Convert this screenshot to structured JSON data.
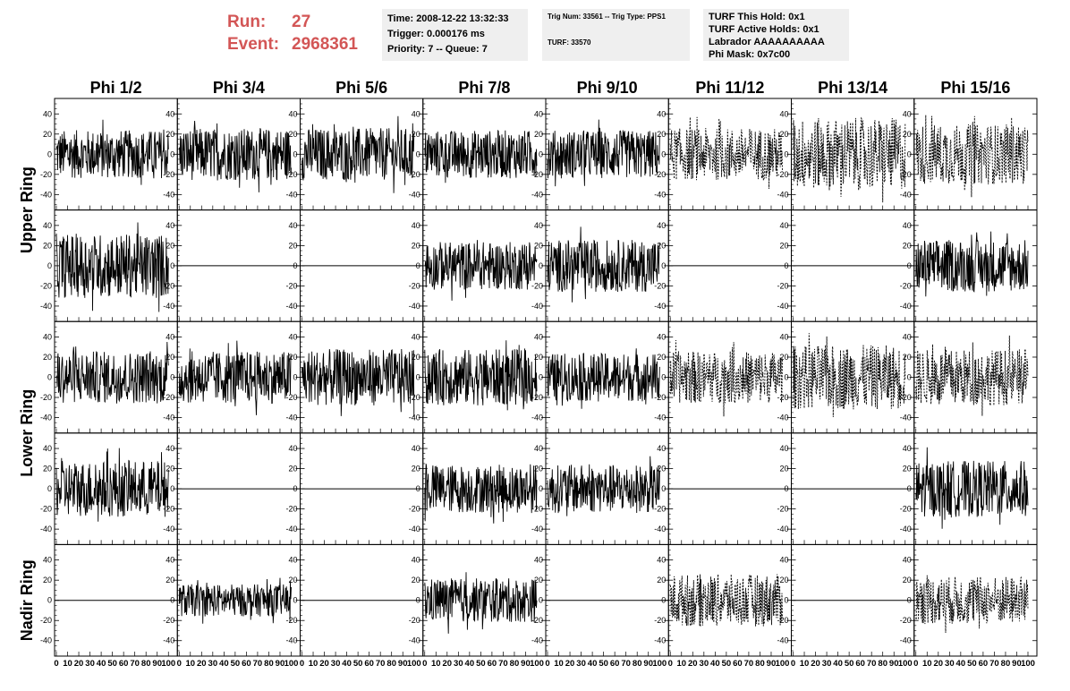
{
  "header": {
    "run_label": "Run:",
    "run_value": "27",
    "event_label": "Event:",
    "event_value": "2968361",
    "time": "Time: 2008-12-22 13:32:33",
    "trigger": "Trigger: 0.000176 ms",
    "priority": "Priority: 7 -- Queue: 7",
    "trig_num": "Trig Num: 33561 -- Trig Type: PPS1",
    "turf": "TURF: 33570",
    "turf_hold": "TURF This Hold: 0x1",
    "turf_active": "TURF Active Holds: 0x1",
    "labrador": "Labrador AAAAAAAAAA",
    "phi_mask": "Phi Mask: 0x7c00"
  },
  "chart_data": {
    "type": "line",
    "columns": [
      "Phi 1/2",
      "Phi 3/4",
      "Phi 5/6",
      "Phi 7/8",
      "Phi 9/10",
      "Phi 11/12",
      "Phi 13/14",
      "Phi 15/16"
    ],
    "ring_labels": [
      {
        "label": "Upper Ring",
        "rows": [
          0,
          1
        ]
      },
      {
        "label": "Lower Ring",
        "rows": [
          2,
          3
        ]
      },
      {
        "label": "Nadir Ring",
        "rows": [
          4
        ]
      }
    ],
    "ylim": [
      -50,
      50
    ],
    "yticks": [
      -40,
      -20,
      0,
      20,
      40
    ],
    "xlim": [
      0,
      100
    ],
    "xtick_labels": [
      "0",
      "10",
      "20",
      "30",
      "40",
      "50",
      "60",
      "70",
      "80",
      "90",
      "100"
    ],
    "panels": [
      [
        {
          "s": "solid",
          "a": 24
        },
        {
          "s": "solid",
          "a": 26
        },
        {
          "s": "solid",
          "a": 26
        },
        {
          "s": "solid",
          "a": 24
        },
        {
          "s": "solid",
          "a": 24
        },
        {
          "s": "dashed",
          "a": 26
        },
        {
          "s": "dashed",
          "a": 36
        },
        {
          "s": "dashed",
          "a": 30
        }
      ],
      [
        {
          "s": "solid",
          "a": 32
        },
        {
          "s": "flat",
          "a": 0
        },
        {
          "s": "flat",
          "a": 0
        },
        {
          "s": "solid",
          "a": 24
        },
        {
          "s": "solid",
          "a": 26
        },
        {
          "s": "flat",
          "a": 0
        },
        {
          "s": "flat",
          "a": 0
        },
        {
          "s": "solid",
          "a": 26
        }
      ],
      [
        {
          "s": "solid",
          "a": 26
        },
        {
          "s": "solid",
          "a": 26
        },
        {
          "s": "solid",
          "a": 28
        },
        {
          "s": "solid",
          "a": 28
        },
        {
          "s": "solid",
          "a": 24
        },
        {
          "s": "dashed",
          "a": 26
        },
        {
          "s": "dashed",
          "a": 32
        },
        {
          "s": "dashed",
          "a": 28
        }
      ],
      [
        {
          "s": "solid",
          "a": 28
        },
        {
          "s": "flat",
          "a": 0
        },
        {
          "s": "flat",
          "a": 0
        },
        {
          "s": "solid",
          "a": 24
        },
        {
          "s": "solid",
          "a": 24
        },
        {
          "s": "flat",
          "a": 0
        },
        {
          "s": "flat",
          "a": 0
        },
        {
          "s": "solid",
          "a": 28
        }
      ],
      [
        {
          "s": "flat",
          "a": 0
        },
        {
          "s": "solid",
          "a": 16
        },
        {
          "s": "flat",
          "a": 0
        },
        {
          "s": "solid",
          "a": 22
        },
        {
          "s": "flat",
          "a": 0
        },
        {
          "s": "dashed",
          "a": 26
        },
        {
          "s": "flat",
          "a": 0
        },
        {
          "s": "dashed",
          "a": 24
        }
      ]
    ]
  }
}
